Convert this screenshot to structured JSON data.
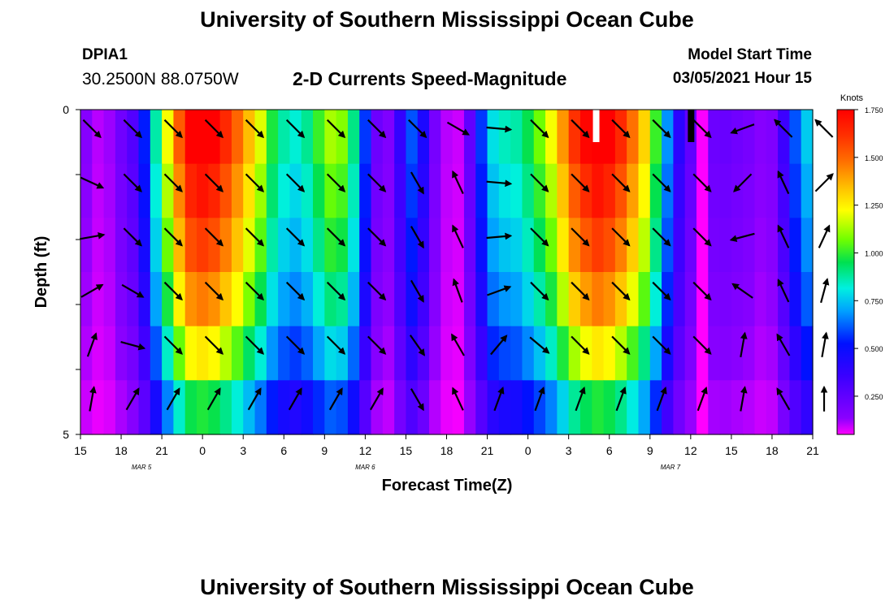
{
  "header": {
    "title": "University of Southern Mississippi Ocean Cube",
    "station_id": "DPIA1",
    "station_coords": "30.2500N 88.0750W",
    "subtitle": "2-D Currents Speed-Magnitude",
    "model_start_label": "Model Start Time",
    "model_start_value": "03/05/2021 Hour 15"
  },
  "footer": {
    "title": "University of Southern Mississippi Ocean Cube"
  },
  "chart_data": {
    "type": "heatmap",
    "title": "2-D Currents Speed-Magnitude",
    "xlabel": "Forecast Time(Z)",
    "ylabel": "Depth (ft)",
    "x_hours_from_start": [
      0,
      54
    ],
    "x_tick_labels": [
      "15",
      "18",
      "21",
      "0",
      "3",
      "6",
      "9",
      "12",
      "15",
      "18",
      "21",
      "0",
      "3",
      "6",
      "9",
      "12",
      "15",
      "18",
      "21"
    ],
    "date_labels": [
      {
        "label": "MAR 5",
        "hour": 4.5
      },
      {
        "label": "MAR 6",
        "hour": 21
      },
      {
        "label": "MAR 7",
        "hour": 43.5
      }
    ],
    "ylim": [
      0,
      5
    ],
    "y_tick_labels": [
      "0",
      "",
      "",
      "",
      "",
      "5"
    ],
    "colorbar": {
      "title": "Knots",
      "range": [
        0.05,
        1.75
      ],
      "tick_labels": [
        "1.750",
        "1.500",
        "1.250",
        "1.000",
        "0.750",
        "0.500",
        "0.250"
      ],
      "tick_values": [
        1.75,
        1.5,
        1.25,
        1.0,
        0.75,
        0.5,
        0.25
      ]
    },
    "speed_profile_knots": [
      0.18,
      0.12,
      0.15,
      0.24,
      0.32,
      0.52,
      0.82,
      1.12,
      1.4,
      1.6,
      1.64,
      1.6,
      1.5,
      1.38,
      1.24,
      1.1,
      0.92,
      0.82,
      0.78,
      0.84,
      0.95,
      1.05,
      1.02,
      0.85,
      0.55,
      0.25,
      0.2,
      0.4,
      0.58,
      0.45,
      0.22,
      0.12,
      0.1,
      0.28,
      0.55,
      0.75,
      0.8,
      0.82,
      0.9,
      1.0,
      1.12,
      1.3,
      1.48,
      1.58,
      1.64,
      1.6,
      1.5,
      1.36,
      1.2,
      0.95,
      0.65,
      0.42,
      0.28,
      0.05,
      0.25,
      0.26,
      0.24,
      0.22,
      0.18,
      0.2,
      0.38,
      0.58,
      0.72
    ],
    "depth_factor": [
      1.1,
      1.04,
      0.98,
      0.9,
      0.78,
      0.62
    ],
    "vector_hours": [
      0,
      3,
      6,
      9,
      12,
      15,
      18,
      21,
      24,
      27,
      30,
      33,
      36,
      39,
      42,
      45,
      48,
      51,
      54
    ],
    "vector_directions_deg": [
      [
        135,
        135,
        135,
        135,
        135,
        135,
        135,
        135,
        135,
        120,
        95,
        135,
        135,
        135,
        135,
        135,
        250,
        315,
        315
      ],
      [
        115,
        135,
        135,
        135,
        135,
        135,
        135,
        135,
        150,
        335,
        95,
        135,
        135,
        135,
        135,
        135,
        225,
        335,
        45
      ],
      [
        80,
        135,
        135,
        135,
        135,
        135,
        135,
        135,
        150,
        335,
        85,
        135,
        135,
        135,
        135,
        135,
        255,
        335,
        25
      ],
      [
        60,
        120,
        135,
        135,
        135,
        135,
        135,
        135,
        150,
        340,
        70,
        135,
        135,
        135,
        135,
        135,
        305,
        335,
        15
      ],
      [
        20,
        105,
        135,
        135,
        135,
        135,
        135,
        135,
        145,
        330,
        40,
        130,
        135,
        135,
        135,
        135,
        10,
        330,
        10
      ],
      [
        10,
        30,
        30,
        30,
        30,
        30,
        30,
        30,
        150,
        335,
        20,
        20,
        20,
        20,
        20,
        20,
        10,
        330,
        0
      ]
    ],
    "surface_markers": [
      {
        "hour": 38,
        "color": "#ffffff"
      },
      {
        "hour": 45,
        "color": "#000000"
      }
    ]
  }
}
